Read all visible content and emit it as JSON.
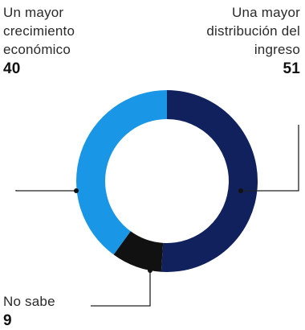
{
  "chart_data": {
    "type": "pie",
    "style": "donut",
    "slices": [
      {
        "label": "Una mayor distribución del ingreso",
        "value": 51,
        "color": "#10215e"
      },
      {
        "label": "No sabe",
        "value": 9,
        "color": "#111111"
      },
      {
        "label": "Un mayor crecimiento económico",
        "value": 40,
        "color": "#1996e6"
      }
    ]
  },
  "labels": {
    "left": {
      "text": "Un mayor crecimiento económico",
      "value": "40"
    },
    "right": {
      "text": "Una mayor distribución del ingreso",
      "value": "51"
    },
    "bottom": {
      "text": "No sabe",
      "value": "9"
    }
  }
}
